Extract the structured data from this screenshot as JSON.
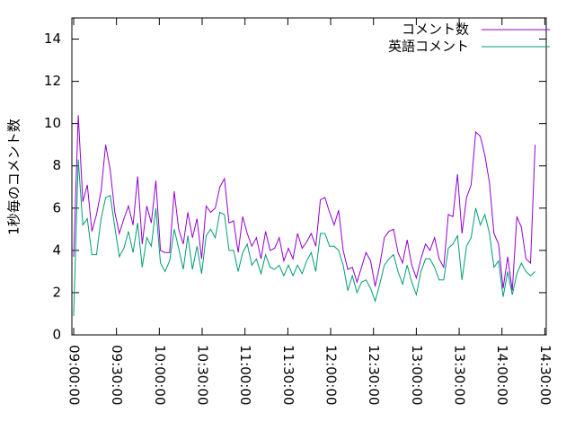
{
  "chart_data": {
    "type": "line",
    "ylabel": "1秒毎のコメント数",
    "x": [
      "09:00:00",
      "09:03:12",
      "09:06:24",
      "09:09:36",
      "09:12:48",
      "09:16:00",
      "09:19:12",
      "09:22:24",
      "09:25:36",
      "09:28:48",
      "09:32:00",
      "09:35:12",
      "09:38:24",
      "09:41:36",
      "09:44:48",
      "09:48:00",
      "09:51:12",
      "09:54:24",
      "09:57:36",
      "10:00:48",
      "10:04:00",
      "10:07:12",
      "10:10:24",
      "10:13:36",
      "10:16:48",
      "10:20:00",
      "10:23:12",
      "10:26:24",
      "10:29:36",
      "10:32:48",
      "10:36:00",
      "10:39:12",
      "10:42:24",
      "10:45:36",
      "10:48:48",
      "10:52:00",
      "10:55:12",
      "10:58:24",
      "11:01:36",
      "11:04:48",
      "11:08:00",
      "11:11:12",
      "11:14:24",
      "11:17:36",
      "11:20:48",
      "11:24:00",
      "11:27:12",
      "11:30:24",
      "11:33:36",
      "11:36:48",
      "11:40:00",
      "11:43:12",
      "11:46:24",
      "11:49:36",
      "11:52:48",
      "11:56:00",
      "11:59:12",
      "12:02:24",
      "12:05:36",
      "12:08:48",
      "12:12:00",
      "12:15:12",
      "12:18:24",
      "12:21:36",
      "12:24:48",
      "12:28:00",
      "12:31:12",
      "12:34:24",
      "12:37:36",
      "12:40:48",
      "12:44:00",
      "12:47:12",
      "12:50:24",
      "12:53:36",
      "12:56:48",
      "13:00:00",
      "13:03:12",
      "13:06:24",
      "13:09:36",
      "13:12:48",
      "13:16:00",
      "13:19:12",
      "13:22:24",
      "13:25:36",
      "13:28:48",
      "13:32:00",
      "13:35:12",
      "13:38:24",
      "13:41:36",
      "13:44:48",
      "13:48:00",
      "13:51:12",
      "13:54:24",
      "13:57:36",
      "14:00:48",
      "14:04:00",
      "14:07:12",
      "14:10:24",
      "14:13:36",
      "14:16:48",
      "14:20:00",
      "14:23:12"
    ],
    "series": [
      {
        "name": "コメント数",
        "color": "#9400d3",
        "values": [
          3.7,
          10.4,
          6.3,
          7.1,
          4.9,
          5.7,
          6.8,
          9.0,
          7.8,
          5.8,
          4.8,
          5.5,
          6.1,
          5.2,
          7.5,
          4.3,
          6.1,
          5.3,
          7.3,
          4.0,
          3.9,
          3.9,
          6.8,
          5.0,
          4.3,
          5.8,
          4.6,
          5.5,
          3.6,
          6.1,
          5.8,
          6.0,
          7.0,
          7.4,
          5.3,
          5.4,
          3.9,
          5.6,
          4.8,
          4.2,
          4.6,
          3.6,
          4.9,
          4.0,
          4.1,
          4.6,
          3.5,
          4.1,
          3.6,
          4.8,
          4.1,
          4.4,
          4.8,
          4.2,
          6.4,
          6.5,
          5.8,
          5.2,
          5.9,
          4.0,
          3.1,
          3.2,
          2.5,
          3.2,
          3.9,
          3.5,
          2.3,
          3.3,
          4.6,
          4.9,
          5.0,
          3.9,
          3.4,
          4.5,
          3.3,
          2.7,
          3.6,
          4.3,
          4.0,
          4.6,
          3.6,
          3.2,
          5.7,
          5.6,
          7.6,
          4.8,
          6.5,
          7.1,
          9.6,
          9.4,
          8.5,
          7.2,
          4.8,
          4.3,
          2.2,
          3.7,
          2.1,
          5.6,
          5.1,
          3.6,
          3.4,
          9.0
        ]
      },
      {
        "name": "英語コメント",
        "color": "#009e73",
        "values": [
          0.9,
          8.3,
          5.2,
          5.5,
          3.8,
          3.8,
          5.5,
          6.5,
          6.6,
          5.1,
          3.7,
          4.1,
          4.9,
          3.9,
          5.3,
          3.2,
          4.6,
          4.2,
          6.0,
          3.4,
          3.0,
          3.5,
          5.0,
          4.1,
          3.1,
          4.7,
          3.1,
          4.2,
          2.9,
          4.7,
          5.0,
          4.6,
          5.8,
          5.7,
          4.0,
          4.0,
          3.0,
          3.9,
          4.3,
          3.3,
          3.6,
          2.9,
          3.8,
          3.2,
          3.1,
          3.3,
          2.8,
          3.3,
          2.8,
          3.3,
          2.9,
          3.5,
          3.9,
          3.0,
          4.8,
          4.8,
          4.2,
          4.2,
          4.0,
          3.3,
          2.1,
          2.8,
          2.0,
          2.5,
          2.6,
          2.2,
          1.6,
          2.4,
          3.3,
          3.6,
          3.8,
          3.0,
          2.4,
          3.3,
          2.5,
          1.9,
          3.0,
          3.6,
          3.6,
          3.2,
          2.6,
          2.6,
          4.1,
          4.3,
          4.7,
          2.6,
          4.2,
          4.6,
          6.0,
          5.2,
          5.7,
          4.8,
          3.2,
          3.5,
          1.8,
          3.0,
          1.9,
          2.9,
          3.4,
          3.0,
          2.8,
          3.0
        ]
      }
    ],
    "xlim": [
      "08:58:45",
      "14:31:00"
    ],
    "xticks": [
      "09:00:00",
      "09:30:00",
      "10:00:00",
      "10:30:00",
      "11:00:00",
      "11:30:00",
      "12:00:00",
      "12:30:00",
      "13:00:00",
      "13:30:00",
      "14:00:00",
      "14:30:00"
    ],
    "ylim": [
      0,
      15
    ],
    "yticks": [
      0,
      2,
      4,
      6,
      8,
      10,
      12,
      14
    ],
    "legend": "top-right"
  }
}
